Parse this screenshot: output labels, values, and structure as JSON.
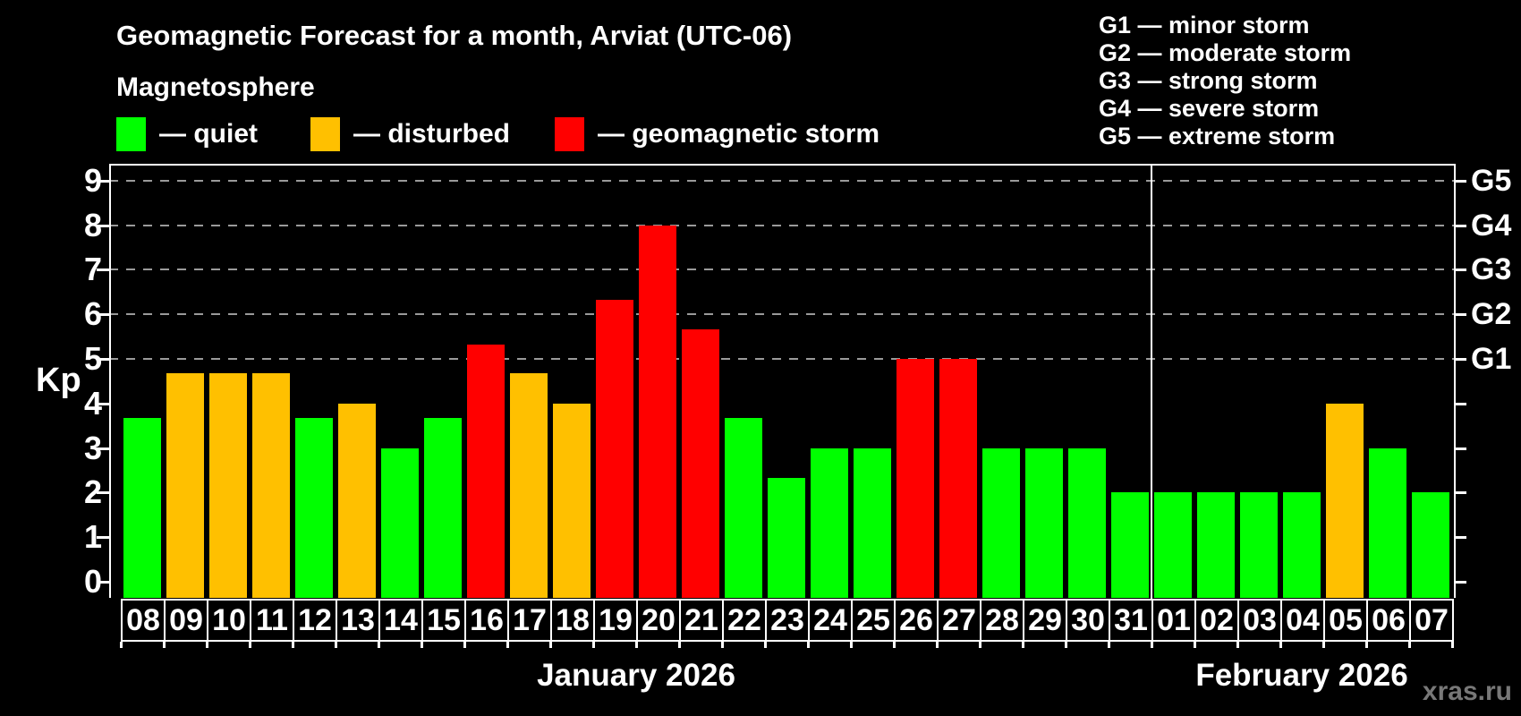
{
  "header": {
    "title": "Geomagnetic Forecast for a month, Arviat (UTC-06)",
    "subtitle": "Magnetosphere",
    "legend": [
      {
        "key": "quiet",
        "label": "— quiet",
        "color": "#00ff00"
      },
      {
        "key": "disturbed",
        "label": "— disturbed",
        "color": "#ffc000"
      },
      {
        "key": "storm",
        "label": "— geomagnetic storm",
        "color": "#ff0000"
      }
    ],
    "g_scale_legend": [
      "G1 — minor storm",
      "G2 — moderate storm",
      "G3 — strong storm",
      "G4 — severe storm",
      "G5 — extreme storm"
    ]
  },
  "chart_data": {
    "type": "bar",
    "title": "Geomagnetic Forecast for a month, Arviat (UTC-06)",
    "ylabel": "Kp",
    "ylim": [
      0,
      9.4
    ],
    "yticks": [
      0,
      1,
      2,
      3,
      4,
      5,
      6,
      7,
      8,
      9
    ],
    "gridlines_at": [
      5,
      6,
      7,
      8,
      9
    ],
    "grid": "dashed horizontal lines at storm levels only",
    "legend_position": "top",
    "right_axis": [
      {
        "label": "G1",
        "kp": 5
      },
      {
        "label": "G2",
        "kp": 6
      },
      {
        "label": "G3",
        "kp": 7
      },
      {
        "label": "G4",
        "kp": 8
      },
      {
        "label": "G5",
        "kp": 9
      }
    ],
    "colors": {
      "quiet": "#00ff00",
      "disturbed": "#ffc000",
      "storm": "#ff0000"
    },
    "thresholds": {
      "disturbed_min": 4,
      "storm_min": 5
    },
    "months": [
      {
        "label": "January 2026",
        "days": [
          "08",
          "09",
          "10",
          "11",
          "12",
          "13",
          "14",
          "15",
          "16",
          "17",
          "18",
          "19",
          "20",
          "21",
          "22",
          "23",
          "24",
          "25",
          "26",
          "27",
          "28",
          "29",
          "30",
          "31"
        ],
        "values": [
          3.67,
          4.67,
          4.67,
          4.67,
          3.67,
          4,
          3,
          3.67,
          5.33,
          4.67,
          4,
          6.33,
          8,
          5.67,
          3.67,
          2.33,
          3,
          3,
          5,
          5,
          3,
          3,
          3,
          2
        ]
      },
      {
        "label": "February 2026",
        "days": [
          "01",
          "02",
          "03",
          "04",
          "05",
          "06",
          "07"
        ],
        "values": [
          2,
          2,
          2,
          2,
          4,
          3,
          2
        ]
      }
    ]
  },
  "watermark": "xras.ru"
}
